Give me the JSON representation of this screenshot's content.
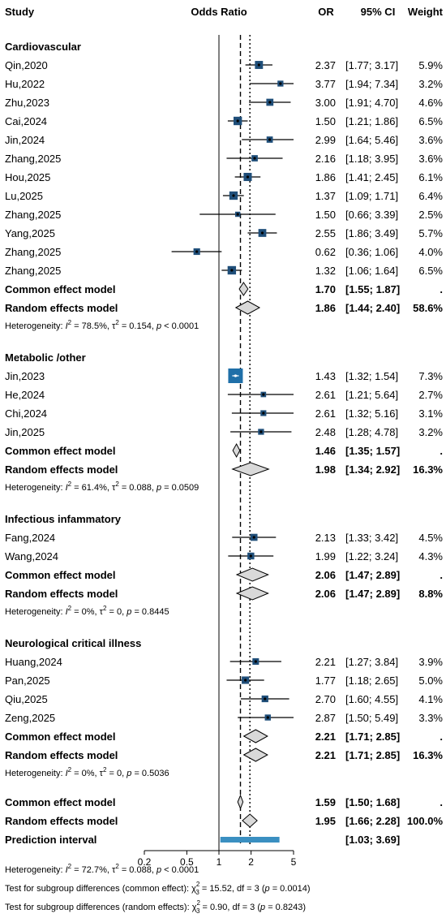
{
  "chart_data": {
    "type": "forest",
    "title": "",
    "headers": {
      "study": "Study",
      "effect": "Odds Ratio",
      "or": "OR",
      "ci": "95% CI",
      "weight": "Weight"
    },
    "x_scale": "log",
    "xlim": [
      0.2,
      5
    ],
    "x_ticks": [
      0.2,
      0.5,
      1,
      2,
      5
    ],
    "x_tick_labels": [
      "0.2",
      "0.5",
      "1",
      "2",
      "5"
    ],
    "reference_lines": {
      "null": 1,
      "common_effect": 1.59,
      "random_effects": 1.95
    },
    "colors": {
      "square": "#1f4e79",
      "big_square": "#1f6fa8",
      "diamond_fill": "#d9d9d9",
      "prediction": "#3a8fc1"
    },
    "subgroups": [
      {
        "name": "Cardiovascular",
        "studies": [
          {
            "study": "Qin,2020",
            "or": 2.37,
            "lower": 1.77,
            "upper": 3.17,
            "or_label": "2.37",
            "ci_label": "[1.77; 3.17]",
            "weight": 5.9,
            "weight_label": "5.9%"
          },
          {
            "study": "Hu,2022",
            "or": 3.77,
            "lower": 1.94,
            "upper": 7.34,
            "or_label": "3.77",
            "ci_label": "[1.94; 7.34]",
            "weight": 3.2,
            "weight_label": "3.2%"
          },
          {
            "study": "Zhu,2023",
            "or": 3.0,
            "lower": 1.91,
            "upper": 4.7,
            "or_label": "3.00",
            "ci_label": "[1.91; 4.70]",
            "weight": 4.6,
            "weight_label": "4.6%"
          },
          {
            "study": "Cai,2024",
            "or": 1.5,
            "lower": 1.21,
            "upper": 1.86,
            "or_label": "1.50",
            "ci_label": "[1.21; 1.86]",
            "weight": 6.5,
            "weight_label": "6.5%"
          },
          {
            "study": "Jin,2024",
            "or": 2.99,
            "lower": 1.64,
            "upper": 5.46,
            "or_label": "2.99",
            "ci_label": "[1.64; 5.46]",
            "weight": 3.6,
            "weight_label": "3.6%"
          },
          {
            "study": "Zhang,2025",
            "or": 2.16,
            "lower": 1.18,
            "upper": 3.95,
            "or_label": "2.16",
            "ci_label": "[1.18; 3.95]",
            "weight": 3.6,
            "weight_label": "3.6%"
          },
          {
            "study": "Hou,2025",
            "or": 1.86,
            "lower": 1.41,
            "upper": 2.45,
            "or_label": "1.86",
            "ci_label": "[1.41; 2.45]",
            "weight": 6.1,
            "weight_label": "6.1%"
          },
          {
            "study": "Lu,2025",
            "or": 1.37,
            "lower": 1.09,
            "upper": 1.71,
            "or_label": "1.37",
            "ci_label": "[1.09; 1.71]",
            "weight": 6.4,
            "weight_label": "6.4%"
          },
          {
            "study": "Zhang,2025",
            "or": 1.5,
            "lower": 0.66,
            "upper": 3.39,
            "or_label": "1.50",
            "ci_label": "[0.66; 3.39]",
            "weight": 2.5,
            "weight_label": "2.5%"
          },
          {
            "study": "Yang,2025",
            "or": 2.55,
            "lower": 1.86,
            "upper": 3.49,
            "or_label": "2.55",
            "ci_label": "[1.86; 3.49]",
            "weight": 5.7,
            "weight_label": "5.7%"
          },
          {
            "study": "Zhang,2025",
            "or": 0.62,
            "lower": 0.36,
            "upper": 1.06,
            "or_label": "0.62",
            "ci_label": "[0.36; 1.06]",
            "weight": 4.0,
            "weight_label": "4.0%"
          },
          {
            "study": "Zhang,2025",
            "or": 1.32,
            "lower": 1.06,
            "upper": 1.64,
            "or_label": "1.32",
            "ci_label": "[1.06; 1.64]",
            "weight": 6.5,
            "weight_label": "6.5%"
          }
        ],
        "common": {
          "label": "Common effect model",
          "or": 1.7,
          "lower": 1.55,
          "upper": 1.87,
          "or_label": "1.70",
          "ci_label": "[1.55; 1.87]",
          "weight_label": "."
        },
        "random": {
          "label": "Random effects model",
          "or": 1.86,
          "lower": 1.44,
          "upper": 2.4,
          "or_label": "1.86",
          "ci_label": "[1.44; 2.40]",
          "weight_label": "58.6%"
        },
        "heterogeneity": {
          "prefix": "Heterogeneity: ",
          "i2": "78.5%",
          "tau2": "0.154",
          "p_rel": "<",
          "p": "0.0001"
        }
      },
      {
        "name": "Metabolic /other",
        "studies": [
          {
            "study": "Jin,2023",
            "or": 1.43,
            "lower": 1.32,
            "upper": 1.54,
            "or_label": "1.43",
            "ci_label": "[1.32; 1.54]",
            "weight": 7.3,
            "weight_label": "7.3%"
          },
          {
            "study": "He,2024",
            "or": 2.61,
            "lower": 1.21,
            "upper": 5.64,
            "or_label": "2.61",
            "ci_label": "[1.21; 5.64]",
            "weight": 2.7,
            "weight_label": "2.7%"
          },
          {
            "study": "Chi,2024",
            "or": 2.61,
            "lower": 1.32,
            "upper": 5.16,
            "or_label": "2.61",
            "ci_label": "[1.32; 5.16]",
            "weight": 3.1,
            "weight_label": "3.1%"
          },
          {
            "study": "Jin,2025",
            "or": 2.48,
            "lower": 1.28,
            "upper": 4.78,
            "or_label": "2.48",
            "ci_label": "[1.28; 4.78]",
            "weight": 3.2,
            "weight_label": "3.2%"
          }
        ],
        "common": {
          "label": "Common effect model",
          "or": 1.46,
          "lower": 1.35,
          "upper": 1.57,
          "or_label": "1.46",
          "ci_label": "[1.35; 1.57]",
          "weight_label": "."
        },
        "random": {
          "label": "Random effects model",
          "or": 1.98,
          "lower": 1.34,
          "upper": 2.92,
          "or_label": "1.98",
          "ci_label": "[1.34; 2.92]",
          "weight_label": "16.3%"
        },
        "heterogeneity": {
          "prefix": "Heterogeneity: ",
          "i2": "61.4%",
          "tau2": "0.088",
          "p_rel": "=",
          "p": "0.0509"
        }
      },
      {
        "name": "Infectious infammatory",
        "studies": [
          {
            "study": "Fang,2024",
            "or": 2.13,
            "lower": 1.33,
            "upper": 3.42,
            "or_label": "2.13",
            "ci_label": "[1.33; 3.42]",
            "weight": 4.5,
            "weight_label": "4.5%"
          },
          {
            "study": "Wang,2024",
            "or": 1.99,
            "lower": 1.22,
            "upper": 3.24,
            "or_label": "1.99",
            "ci_label": "[1.22; 3.24]",
            "weight": 4.3,
            "weight_label": "4.3%"
          }
        ],
        "common": {
          "label": "Common effect model",
          "or": 2.06,
          "lower": 1.47,
          "upper": 2.89,
          "or_label": "2.06",
          "ci_label": "[1.47; 2.89]",
          "weight_label": "."
        },
        "random": {
          "label": "Random effects model",
          "or": 2.06,
          "lower": 1.47,
          "upper": 2.89,
          "or_label": "2.06",
          "ci_label": "[1.47; 2.89]",
          "weight_label": "8.8%"
        },
        "heterogeneity": {
          "prefix": "Heterogeneity: ",
          "i2": "0%",
          "tau2": "0",
          "p_rel": "=",
          "p": "0.8445"
        }
      },
      {
        "name": "Neurological critical illness",
        "studies": [
          {
            "study": "Huang,2024",
            "or": 2.21,
            "lower": 1.27,
            "upper": 3.84,
            "or_label": "2.21",
            "ci_label": "[1.27; 3.84]",
            "weight": 3.9,
            "weight_label": "3.9%"
          },
          {
            "study": "Pan,2025",
            "or": 1.77,
            "lower": 1.18,
            "upper": 2.65,
            "or_label": "1.77",
            "ci_label": "[1.18; 2.65]",
            "weight": 5.0,
            "weight_label": "5.0%"
          },
          {
            "study": "Qiu,2025",
            "or": 2.7,
            "lower": 1.6,
            "upper": 4.55,
            "or_label": "2.70",
            "ci_label": "[1.60; 4.55]",
            "weight": 4.1,
            "weight_label": "4.1%"
          },
          {
            "study": "Zeng,2025",
            "or": 2.87,
            "lower": 1.5,
            "upper": 5.49,
            "or_label": "2.87",
            "ci_label": "[1.50; 5.49]",
            "weight": 3.3,
            "weight_label": "3.3%"
          }
        ],
        "common": {
          "label": "Common effect model",
          "or": 2.21,
          "lower": 1.71,
          "upper": 2.85,
          "or_label": "2.21",
          "ci_label": "[1.71; 2.85]",
          "weight_label": "."
        },
        "random": {
          "label": "Random effects model",
          "or": 2.21,
          "lower": 1.71,
          "upper": 2.85,
          "or_label": "2.21",
          "ci_label": "[1.71; 2.85]",
          "weight_label": "16.3%"
        },
        "heterogeneity": {
          "prefix": "Heterogeneity: ",
          "i2": "0%",
          "tau2": "0",
          "p_rel": "=",
          "p": "0.5036"
        }
      }
    ],
    "overall": {
      "common": {
        "label": "Common effect model",
        "or": 1.59,
        "lower": 1.5,
        "upper": 1.68,
        "or_label": "1.59",
        "ci_label": "[1.50; 1.68]",
        "weight_label": "."
      },
      "random": {
        "label": "Random effects model",
        "or": 1.95,
        "lower": 1.66,
        "upper": 2.28,
        "or_label": "1.95",
        "ci_label": "[1.66; 2.28]",
        "weight_label": "100.0%"
      },
      "prediction": {
        "label": "Prediction interval",
        "lower": 1.03,
        "upper": 3.69,
        "ci_label": "[1.03; 3.69]"
      },
      "heterogeneity": {
        "prefix": "Heterogeneity: ",
        "i2": "72.7%",
        "tau2": "0.088",
        "p_rel": "<",
        "p": "0.0001"
      }
    },
    "subgroup_tests": [
      {
        "label": "Test for subgroup differences (common effect): ",
        "chi2": "15.52",
        "df": "3",
        "p": "0.0014"
      },
      {
        "label": "Test for subgroup differences (random effects): ",
        "chi2": "0.90",
        "df": "3",
        "p": "0.8243"
      }
    ]
  }
}
